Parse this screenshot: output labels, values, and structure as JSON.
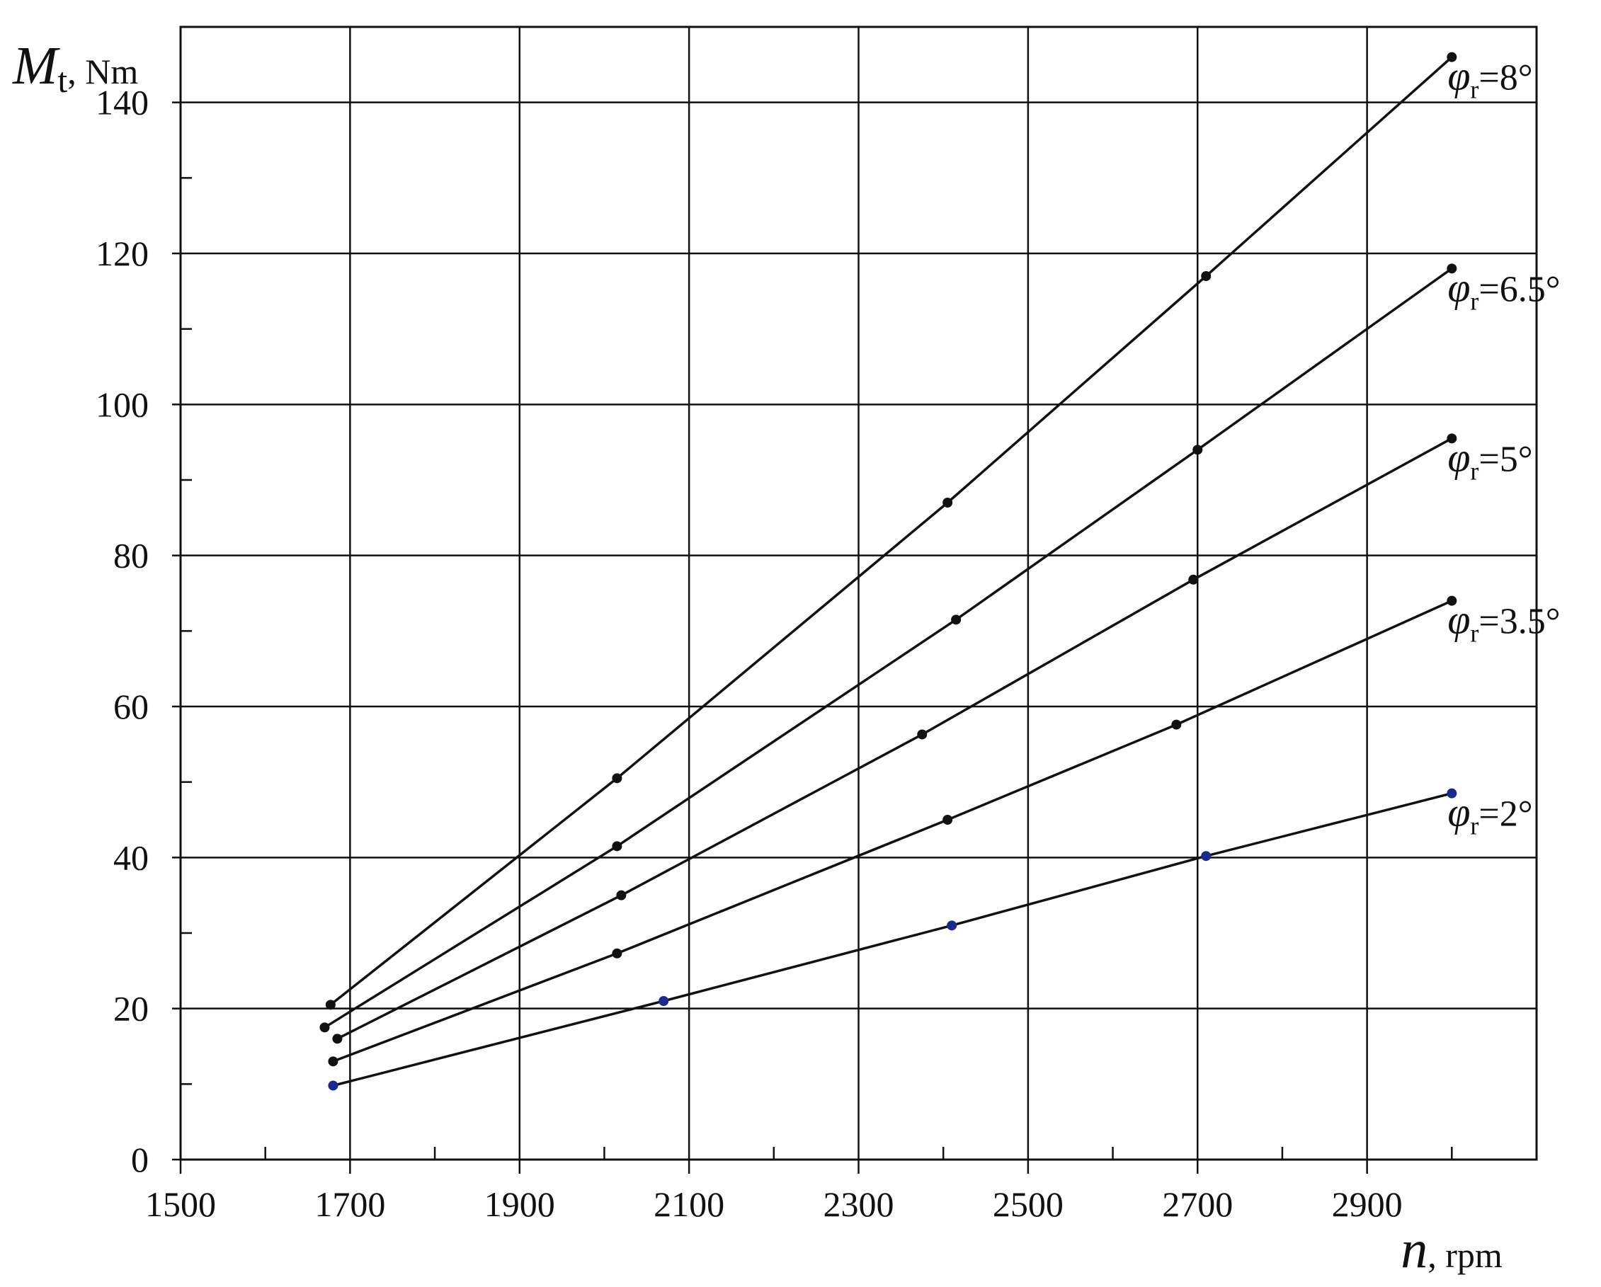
{
  "chart_data": {
    "type": "line",
    "title": "",
    "xlabel": {
      "symbol": "n",
      "unit": "rpm"
    },
    "ylabel": {
      "symbol": "M",
      "subscript": "t",
      "unit": "Nm"
    },
    "xlim": [
      1500,
      3100
    ],
    "ylim": [
      0,
      150
    ],
    "xticks": [
      1500,
      1700,
      1900,
      2100,
      2300,
      2500,
      2700,
      2900
    ],
    "yticks": [
      0,
      20,
      40,
      60,
      80,
      100,
      120,
      140
    ],
    "grid": true,
    "series": [
      {
        "name": "φr=8°",
        "label": {
          "symbol": "φ",
          "subscript": "r",
          "value": "=8°"
        },
        "color": "#111111",
        "points": [
          [
            1677,
            20.5
          ],
          [
            2015,
            50.5
          ],
          [
            2405,
            87
          ],
          [
            2710,
            117
          ],
          [
            3000,
            146
          ]
        ]
      },
      {
        "name": "φr=6.5°",
        "label": {
          "symbol": "φ",
          "subscript": "r",
          "value": "=6.5°"
        },
        "color": "#111111",
        "points": [
          [
            1670,
            17.5
          ],
          [
            2015,
            41.5
          ],
          [
            2415,
            71.5
          ],
          [
            2700,
            94
          ],
          [
            3000,
            118
          ]
        ]
      },
      {
        "name": "φr=5°",
        "label": {
          "symbol": "φ",
          "subscript": "r",
          "value": "=5°"
        },
        "color": "#111111",
        "points": [
          [
            1685,
            16
          ],
          [
            2020,
            35
          ],
          [
            2375,
            56.3
          ],
          [
            2695,
            76.8
          ],
          [
            3000,
            95.5
          ]
        ]
      },
      {
        "name": "φr=3.5°",
        "label": {
          "symbol": "φ",
          "subscript": "r",
          "value": "=3.5°"
        },
        "color": "#111111",
        "points": [
          [
            1680,
            13
          ],
          [
            2015,
            27.3
          ],
          [
            2405,
            45
          ],
          [
            2675,
            57.6
          ],
          [
            3000,
            74
          ]
        ]
      },
      {
        "name": "φr=2°",
        "label": {
          "symbol": "φ",
          "subscript": "r",
          "value": "=2°"
        },
        "color": "#111111",
        "marker_color": "#1a2a8c",
        "points": [
          [
            1680,
            9.8
          ],
          [
            2070,
            21
          ],
          [
            2410,
            31
          ],
          [
            2710,
            40.2
          ],
          [
            3000,
            48.5
          ]
        ]
      }
    ]
  }
}
